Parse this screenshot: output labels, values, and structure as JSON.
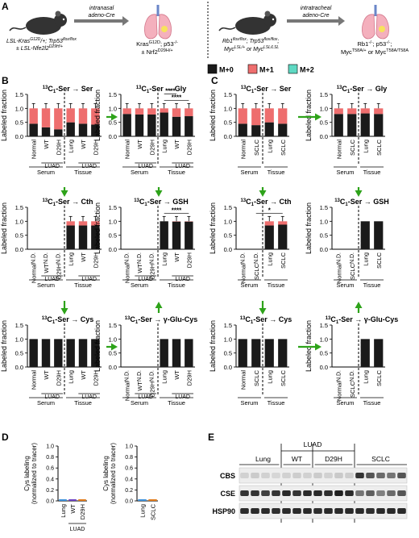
{
  "panel_letters": {
    "A": "A",
    "B": "B",
    "C": "C",
    "D": "D",
    "E": "E"
  },
  "schemes": {
    "left_delivery": [
      "intranasal",
      "adeno-Cre"
    ],
    "left_mouse_lines": [
      "LSL-Kras",
      "G12D",
      "/+; Trp53",
      "flox/flox",
      "± LSL-Nfe2l2",
      "D29H/+"
    ],
    "left_result": [
      "Kras",
      "G12D",
      "; p53",
      "-/-",
      "± Nrf2",
      "D29H/+"
    ],
    "right_delivery": [
      "intratracheal",
      "adeno-Cre"
    ],
    "right_mouse_lines": [
      "Rb1",
      "flox/flox",
      "; Trp53",
      "flox/flox",
      ";",
      "Myc",
      "LSL/+",
      " or Myc",
      "LSL/LSL"
    ],
    "right_result": [
      "Rb1",
      "-/-",
      "; p53",
      "-/-",
      ";",
      "Myc",
      "T58A/+",
      " or Myc",
      "T58A/T58A"
    ]
  },
  "legend": {
    "items": [
      {
        "label": "M+0",
        "color": "#1a1a1a"
      },
      {
        "label": "M+1",
        "color": "#ee6e6e"
      },
      {
        "label": "M+2",
        "color": "#5fd9c3"
      }
    ]
  },
  "colors": {
    "m0": "#1a1a1a",
    "m1": "#ee6e6e",
    "m2": "#5fd9c3",
    "arrow": "#2ea31a",
    "gray_arrow": "#777777"
  },
  "axis": {
    "ylabel": "Labeled fraction",
    "ticks": [
      "0.0",
      "0.5",
      "1.0",
      "1.5"
    ],
    "nd": "N.D."
  },
  "chart_data": [
    {
      "panel": "B",
      "type": "bar",
      "title": "13C1-Ser → Ser",
      "categories": [
        "Normal",
        "WT",
        "D29H",
        "Lung",
        "WT",
        "D29H"
      ],
      "series": [
        {
          "name": "M+0",
          "values": [
            0.45,
            0.32,
            0.25,
            0.5,
            0.45,
            0.42
          ]
        },
        {
          "name": "M+1",
          "values": [
            0.55,
            0.68,
            0.75,
            0.5,
            0.55,
            0.58
          ]
        }
      ],
      "groups": [
        {
          "label": "Serum",
          "sub": "LUAD"
        },
        {
          "label": "Tissue",
          "sub": "LUAD"
        }
      ],
      "ylim": [
        0,
        1.5
      ]
    },
    {
      "panel": "B",
      "type": "bar",
      "title": "13C1-Ser → Gly",
      "categories": [
        "Normal",
        "WT",
        "D29H",
        "Lung",
        "WT",
        "D29H"
      ],
      "series": [
        {
          "name": "M+0",
          "values": [
            0.8,
            0.78,
            0.78,
            0.85,
            0.7,
            0.72
          ]
        },
        {
          "name": "M+1",
          "values": [
            0.2,
            0.22,
            0.22,
            0.15,
            0.3,
            0.28
          ]
        }
      ],
      "annotations": [
        "****",
        "****"
      ],
      "ylim": [
        0,
        1.5
      ]
    },
    {
      "panel": "B",
      "type": "bar",
      "title": "13C1-Ser → Cth",
      "categories": [
        "Normal",
        "WT",
        "D29H",
        "Lung",
        "WT",
        "D29H"
      ],
      "series": [
        {
          "name": "M+0",
          "values": [
            null,
            null,
            null,
            0.85,
            0.85,
            0.85
          ]
        },
        {
          "name": "M+1",
          "values": [
            null,
            null,
            null,
            0.15,
            0.15,
            0.15
          ]
        }
      ],
      "ylim": [
        0,
        1.5
      ]
    },
    {
      "panel": "B",
      "type": "bar",
      "title": "13C1-Ser → GSH",
      "categories": [
        "Normal",
        "WT",
        "D29H",
        "Lung",
        "WT",
        "D29H"
      ],
      "series": [
        {
          "name": "M+0",
          "values": [
            null,
            null,
            null,
            1.0,
            0.99,
            0.99
          ]
        },
        {
          "name": "M+1",
          "values": [
            null,
            null,
            null,
            0.0,
            0.01,
            0.01
          ]
        }
      ],
      "annotations": [
        "****"
      ],
      "ylim": [
        0,
        1.5
      ]
    },
    {
      "panel": "B",
      "type": "bar",
      "title": "13C1-Ser → Cys",
      "categories": [
        "Normal",
        "WT",
        "D29H",
        "Lung",
        "WT",
        "D29H"
      ],
      "series": [
        {
          "name": "M+0",
          "values": [
            1.0,
            1.0,
            1.0,
            1.0,
            1.0,
            1.0
          ]
        }
      ],
      "ylim": [
        0,
        1.5
      ]
    },
    {
      "panel": "B",
      "type": "bar",
      "title": "13C1-Ser → γ-Glu-Cys",
      "categories": [
        "Normal",
        "WT",
        "D29H",
        "Lung",
        "WT",
        "D29H"
      ],
      "series": [
        {
          "name": "M+0",
          "values": [
            null,
            null,
            null,
            1.0,
            1.0,
            1.0
          ]
        }
      ],
      "ylim": [
        0,
        1.5
      ]
    },
    {
      "panel": "C",
      "type": "bar",
      "title": "13C1-Ser → Ser",
      "categories": [
        "Normal",
        "SCLC",
        "Lung",
        "SCLC"
      ],
      "series": [
        {
          "name": "M+0",
          "values": [
            0.45,
            0.4,
            0.5,
            0.45
          ]
        },
        {
          "name": "M+1",
          "values": [
            0.55,
            0.6,
            0.5,
            0.55
          ]
        }
      ],
      "groups": [
        {
          "label": "Serum"
        },
        {
          "label": "Tissue"
        }
      ],
      "ylim": [
        0,
        1.5
      ]
    },
    {
      "panel": "C",
      "type": "bar",
      "title": "13C1-Ser → Gly",
      "categories": [
        "Normal",
        "SCLC",
        "Lung",
        "SCLC"
      ],
      "series": [
        {
          "name": "M+0",
          "values": [
            0.8,
            0.8,
            0.82,
            0.8
          ]
        },
        {
          "name": "M+1",
          "values": [
            0.2,
            0.2,
            0.18,
            0.2
          ]
        }
      ],
      "ylim": [
        0,
        1.5
      ]
    },
    {
      "panel": "C",
      "type": "bar",
      "title": "13C1-Ser → Cth",
      "categories": [
        "Normal",
        "SCLC",
        "Lung",
        "SCLC"
      ],
      "series": [
        {
          "name": "M+0",
          "values": [
            null,
            null,
            0.85,
            0.88
          ]
        },
        {
          "name": "M+1",
          "values": [
            null,
            null,
            0.15,
            0.12
          ]
        }
      ],
      "annotations": [
        "*"
      ],
      "ylim": [
        0,
        1.5
      ]
    },
    {
      "panel": "C",
      "type": "bar",
      "title": "13C1-Ser → GSH",
      "categories": [
        "Normal",
        "SCLC",
        "Lung",
        "SCLC"
      ],
      "series": [
        {
          "name": "M+0",
          "values": [
            null,
            null,
            1.0,
            1.0
          ]
        }
      ],
      "ylim": [
        0,
        1.5
      ]
    },
    {
      "panel": "C",
      "type": "bar",
      "title": "13C1-Ser → Cys",
      "categories": [
        "Normal",
        "SCLC",
        "Lung",
        "SCLC"
      ],
      "series": [
        {
          "name": "M+0",
          "values": [
            1.0,
            1.0,
            1.0,
            1.0
          ]
        }
      ],
      "ylim": [
        0,
        1.5
      ]
    },
    {
      "panel": "C",
      "type": "bar",
      "title": "13C1-Ser → γ-Glu-Cys",
      "categories": [
        "Normal",
        "SCLC",
        "Lung",
        "SCLC"
      ],
      "series": [
        {
          "name": "M+0",
          "values": [
            null,
            null,
            1.0,
            1.0
          ]
        }
      ],
      "ylim": [
        0,
        1.5
      ]
    },
    {
      "panel": "D",
      "type": "line",
      "ylabel": "Cys labeling (normalized to tracer)",
      "categories": [
        "Lung",
        "WT",
        "D29H"
      ],
      "group": "LUAD",
      "values": [
        0.0,
        0.0,
        0.0
      ],
      "yticks": [
        "0.0",
        "0.2",
        "0.4",
        "0.6",
        "0.8",
        "1.0"
      ],
      "ylim": [
        0,
        1.0
      ],
      "colors": [
        "#3b8fd9",
        "#6a3fbf",
        "#e07a1a"
      ]
    },
    {
      "panel": "D",
      "type": "line",
      "ylabel": "Cys labeling (normalized to tracer)",
      "categories": [
        "Lung",
        "SCLC"
      ],
      "values": [
        0.0,
        0.0
      ],
      "yticks": [
        "0.0",
        "0.2",
        "0.4",
        "0.6",
        "0.8",
        "1.0"
      ],
      "ylim": [
        0,
        1.0
      ],
      "colors": [
        "#3b8fd9",
        "#e07a1a"
      ]
    }
  ],
  "western": {
    "header_top": "LUAD",
    "headers": [
      "Lung",
      "WT",
      "D29H",
      "SCLC"
    ],
    "rows": [
      {
        "label": "CBS",
        "intensities": [
          0.12,
          0.15,
          0.12,
          0.1,
          0.12,
          0.14,
          0.12,
          0.15,
          0.12,
          0.16,
          0.14,
          0.85,
          0.7,
          0.6,
          0.55,
          0.7
        ]
      },
      {
        "label": "CSE",
        "intensities": [
          0.85,
          0.85,
          0.8,
          0.85,
          0.9,
          0.85,
          0.9,
          0.9,
          0.88,
          0.95,
          0.9,
          0.55,
          0.65,
          0.5,
          0.6,
          0.7
        ]
      },
      {
        "label": "HSP90",
        "intensities": [
          0.9,
          0.9,
          0.9,
          0.88,
          0.9,
          0.9,
          0.9,
          0.88,
          0.9,
          0.9,
          0.9,
          0.9,
          0.88,
          0.9,
          0.9,
          0.9
        ]
      }
    ]
  }
}
